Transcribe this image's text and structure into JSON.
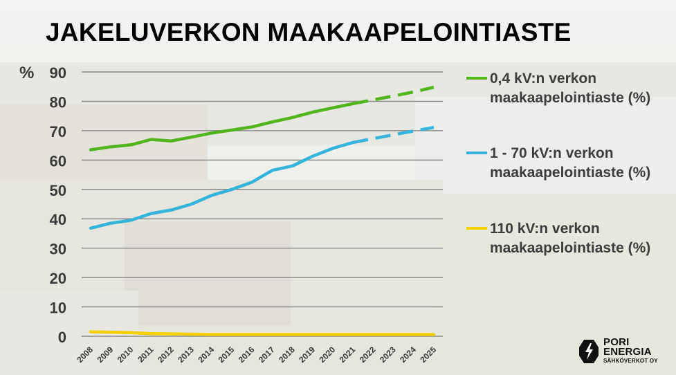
{
  "title": "JAKELUVERKON MAAKAAPELOINTIASTE",
  "logo": {
    "line1": "PORI",
    "line2": "ENERGIA",
    "sub": "SÄHKÖVERKOT OY",
    "icon": "lightning-bolt-icon"
  },
  "colors": {
    "series_04kv": "#52b51e",
    "series_1_70kv": "#35b4dc",
    "series_110kv": "#f5d000",
    "grid": "#8c8c8c",
    "axis_text": "#3a3a3a"
  },
  "chart_data": {
    "type": "line",
    "ylabel": "%",
    "xlabel": "",
    "ylim": [
      0,
      90
    ],
    "yticks": [
      0,
      10,
      20,
      30,
      40,
      50,
      60,
      70,
      80,
      90
    ],
    "grid": true,
    "legend_position": "right",
    "x": [
      "2008",
      "2009",
      "2010",
      "2011",
      "2012",
      "2013",
      "2014",
      "2015",
      "2016",
      "2017",
      "2018",
      "2019",
      "2020",
      "2021",
      "2022",
      "2023",
      "2024",
      "2025"
    ],
    "series": [
      {
        "name": "0,4 kV:n verkon maakaapelointiaste (%)",
        "values": [
          63.5,
          64.5,
          65.2,
          67,
          66.5,
          67.8,
          69.2,
          70.2,
          71.3,
          73,
          74.5,
          76.3,
          77.8,
          79.2,
          null,
          null,
          null,
          null
        ],
        "forecast": [
          null,
          null,
          null,
          null,
          null,
          null,
          null,
          null,
          null,
          null,
          null,
          null,
          null,
          79.2,
          80.5,
          81.8,
          83.2,
          84.8
        ]
      },
      {
        "name": "1 - 70 kV:n verkon maakaapelointiaste (%)",
        "values": [
          36.8,
          38.5,
          39.5,
          41.8,
          43,
          45,
          48,
          50,
          52.5,
          56.5,
          58,
          61.3,
          64,
          66,
          null,
          null,
          null,
          null
        ],
        "forecast": [
          null,
          null,
          null,
          null,
          null,
          null,
          null,
          null,
          null,
          null,
          null,
          null,
          null,
          66,
          67.3,
          68.6,
          69.9,
          71.1
        ]
      },
      {
        "name": "110 kV:n verkon maakaapelointiaste (%)",
        "values": [
          1.5,
          1.4,
          1.2,
          0.9,
          0.8,
          0.7,
          0.6,
          0.6,
          0.6,
          0.6,
          0.6,
          0.6,
          0.6,
          0.6,
          0.6,
          0.6,
          0.6,
          0.6
        ],
        "forecast": []
      }
    ]
  }
}
